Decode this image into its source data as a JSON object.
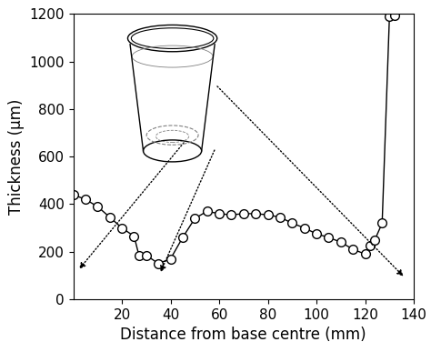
{
  "chart_data": {
    "type": "line",
    "x_label": "Distance from base centre (mm)",
    "y_label": "Thickness (µm)",
    "x": [
      0,
      5,
      10,
      15,
      20,
      25,
      27,
      30,
      35,
      40,
      45,
      50,
      55,
      60,
      65,
      70,
      75,
      80,
      85,
      90,
      95,
      100,
      105,
      110,
      115,
      120,
      122,
      124,
      127,
      130,
      132
    ],
    "values": [
      440,
      420,
      390,
      345,
      300,
      265,
      185,
      185,
      150,
      170,
      260,
      340,
      370,
      360,
      355,
      360,
      360,
      355,
      345,
      320,
      300,
      275,
      260,
      240,
      210,
      190,
      225,
      250,
      320,
      1190,
      1195
    ],
    "color": "#000000",
    "marker": "circle",
    "line_style": "solid",
    "xlim": [
      0,
      140
    ],
    "xticks": [
      20,
      40,
      60,
      80,
      100,
      120,
      140
    ],
    "ylim": [
      0,
      1200
    ],
    "yticks": [
      0,
      200,
      400,
      600,
      800,
      1000,
      1200
    ],
    "grid": false
  }
}
